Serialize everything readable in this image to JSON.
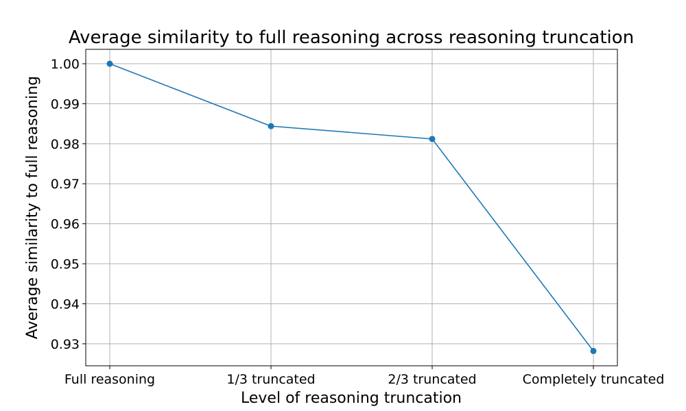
{
  "chart_data": {
    "type": "line",
    "title": "Average similarity to full reasoning across reasoning truncation",
    "xlabel": "Level of reasoning truncation",
    "ylabel": "Average similarity to full reasoning",
    "categories": [
      "Full reasoning",
      "1/3 truncated",
      "2/3 truncated",
      "Completely truncated"
    ],
    "series": [
      {
        "values": [
          1.0,
          0.9844,
          0.9812,
          0.9282
        ],
        "color": "#1f77b4",
        "marker": "circle"
      }
    ],
    "ylim": [
      0.9245,
      1.0036
    ],
    "yticks": [
      0.93,
      0.94,
      0.95,
      0.96,
      0.97,
      0.98,
      0.99,
      1.0
    ],
    "ytick_labels": [
      "0.93",
      "0.94",
      "0.95",
      "0.96",
      "0.97",
      "0.98",
      "0.99",
      "1.00"
    ],
    "grid": true,
    "legend": false
  }
}
